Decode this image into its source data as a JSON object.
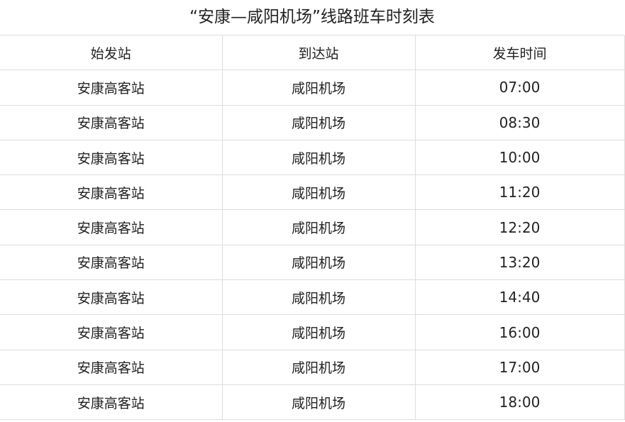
{
  "title": "“安康—咸阳机场”线路班车时刻表",
  "headers": [
    "始发站",
    "到达站",
    "发车时间"
  ],
  "rows": [
    [
      "安康高客站",
      "咸阳机场",
      "07:00"
    ],
    [
      "安康高客站",
      "咸阳机场",
      "08:30"
    ],
    [
      "安康高客站",
      "咸阳机场",
      "10:00"
    ],
    [
      "安康高客站",
      "咸阳机场",
      "11:20"
    ],
    [
      "安康高客站",
      "咸阳机场",
      "12:20"
    ],
    [
      "安康高客站",
      "咸阳机场",
      "13:20"
    ],
    [
      "安康高客站",
      "咸阳机场",
      "14:40"
    ],
    [
      "安康高客站",
      "咸阳机场",
      "16:00"
    ],
    [
      "安康高客站",
      "咸阳机场",
      "17:00"
    ],
    [
      "安康高客站",
      "咸阳机场",
      "18:00"
    ]
  ]
}
